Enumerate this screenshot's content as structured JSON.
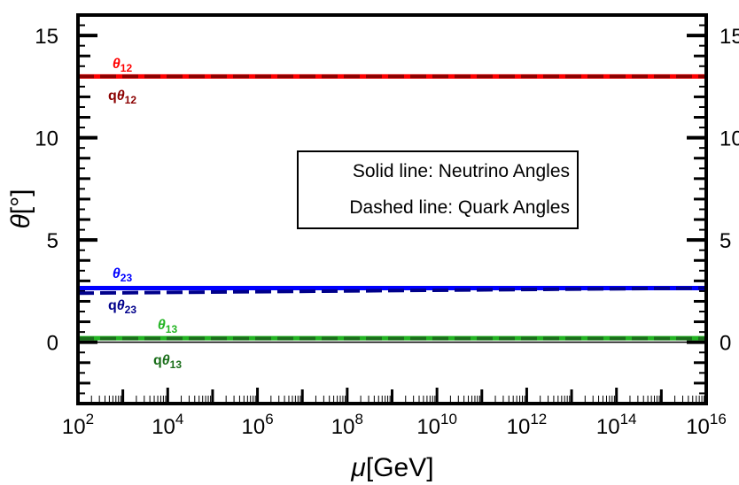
{
  "chart_data": {
    "type": "line",
    "xlabel_symbol": "μ",
    "xlabel_unit": "[GeV]",
    "ylabel_symbol": "θ",
    "ylabel_unit": "[°]",
    "x_scale": "log",
    "xlim_exponent": [
      2,
      16
    ],
    "x_tick_base": "10",
    "x_tick_exponents": [
      "2",
      "4",
      "6",
      "8",
      "10",
      "12",
      "14",
      "16"
    ],
    "ylim": [
      -3,
      16
    ],
    "y_ticks": [
      0,
      5,
      10,
      15
    ],
    "y_tick_labels": [
      "0",
      "5",
      "10",
      "15"
    ],
    "legend_box": {
      "line1": "Solid line: Neutrino Angles",
      "line2": "Dashed line: Quark Angles"
    },
    "series": [
      {
        "name": "θ12",
        "symbol": "θ",
        "prefix": "",
        "sub": "12",
        "style": "solid",
        "color": "#ff0000",
        "x_exp": [
          2,
          16
        ],
        "values": [
          13.0,
          13.0
        ]
      },
      {
        "name": "qθ12",
        "symbol": "θ",
        "prefix": "q",
        "sub": "12",
        "style": "dashed",
        "color": "#8b0000",
        "x_exp": [
          2,
          16
        ],
        "values": [
          13.0,
          13.0
        ]
      },
      {
        "name": "θ23",
        "symbol": "θ",
        "prefix": "",
        "sub": "23",
        "style": "solid",
        "color": "#0000ff",
        "x_exp": [
          2,
          16
        ],
        "values": [
          2.65,
          2.65
        ]
      },
      {
        "name": "qθ23",
        "symbol": "θ",
        "prefix": "q",
        "sub": "23",
        "style": "dashed",
        "color": "#00008b",
        "x_exp": [
          2,
          16
        ],
        "values": [
          2.4,
          2.65
        ]
      },
      {
        "name": "θ13",
        "symbol": "θ",
        "prefix": "",
        "sub": "13",
        "style": "solid",
        "color": "#22b422",
        "x_exp": [
          2,
          16
        ],
        "values": [
          0.2,
          0.2
        ]
      },
      {
        "name": "qθ13",
        "symbol": "θ",
        "prefix": "q",
        "sub": "13",
        "style": "dashed",
        "color": "#1a6e1a",
        "x_exp": [
          2,
          16
        ],
        "values": [
          0.18,
          0.18
        ]
      }
    ]
  }
}
